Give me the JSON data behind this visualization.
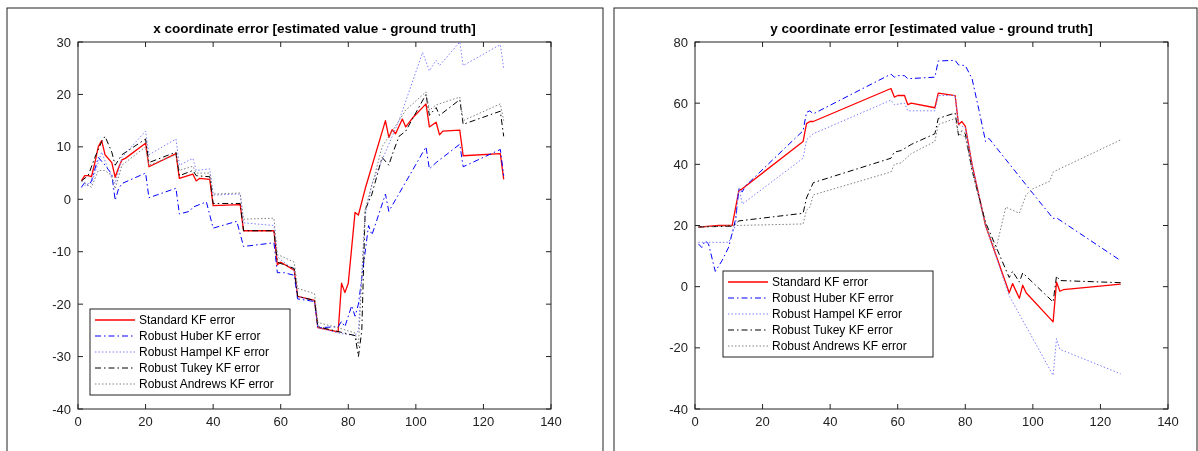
{
  "chart_data": [
    {
      "type": "line",
      "title": "x coordinate error [estimated value - ground truth]",
      "xlim": [
        0,
        140
      ],
      "xticks": [
        0,
        20,
        40,
        60,
        80,
        100,
        120,
        140
      ],
      "ylim": [
        -40,
        30
      ],
      "yticks": [
        -40,
        -30,
        -20,
        -10,
        0,
        10,
        20,
        30
      ],
      "grid": false,
      "legend": "bottom left",
      "marker": "none",
      "series": [
        {
          "name": "Standard KF error",
          "color": "#ff0000",
          "line_style": "solid",
          "x": [
            1,
            2,
            3,
            4,
            5,
            6,
            7,
            8,
            10,
            11,
            12,
            13,
            14,
            20,
            21,
            29,
            30,
            34,
            35,
            36,
            39,
            40,
            48,
            49,
            58,
            59,
            60,
            64,
            65,
            70,
            71,
            77,
            78,
            79,
            80,
            82,
            83,
            85,
            91,
            92,
            93,
            94,
            96,
            97,
            99,
            103,
            104,
            106,
            107,
            108,
            113,
            114,
            125,
            126
          ],
          "values": [
            3.5,
            4.5,
            4.5,
            4.3,
            7,
            10,
            11.2,
            8.5,
            7,
            4.2,
            6,
            7.5,
            7.8,
            10.7,
            6.2,
            8.7,
            4,
            4.8,
            3.5,
            4,
            3.8,
            -1.2,
            -1,
            -6,
            -6,
            -12.5,
            -12,
            -13.5,
            -18.5,
            -19.3,
            -24.5,
            -25.3,
            -16,
            -17.8,
            -16,
            -2.5,
            -3,
            2,
            15,
            11.8,
            13.3,
            12.5,
            15.3,
            13.8,
            15.5,
            18.2,
            13.8,
            14.7,
            12.3,
            13,
            13.2,
            8.3,
            8.7,
            3.8
          ]
        },
        {
          "name": "Robust Huber KF error",
          "color": "#0000ff",
          "line_style": "dashed",
          "x": [
            1,
            2,
            3,
            4,
            6,
            8,
            10,
            11,
            12,
            13,
            20,
            21,
            29,
            30,
            33,
            34,
            38,
            40,
            47,
            49,
            58,
            59,
            61,
            64,
            65,
            70,
            71,
            77,
            78,
            79,
            81,
            82,
            83,
            86,
            87,
            91,
            92,
            103,
            104,
            106,
            113,
            114,
            125,
            126
          ],
          "values": [
            2.3,
            3.2,
            2.6,
            3.5,
            8,
            6.5,
            4.8,
            -0.2,
            2,
            3,
            5,
            0.3,
            2.1,
            -2.8,
            -2.3,
            -1.5,
            -0.5,
            -5.5,
            -4.2,
            -9,
            -8.3,
            -14,
            -14,
            -14.5,
            -19,
            -19.5,
            -24.5,
            -24.3,
            -23.3,
            -24.3,
            -20.3,
            -22.3,
            -20,
            -5,
            -6.8,
            1,
            -2.3,
            10,
            5.8,
            7,
            10.5,
            6.2,
            9.5,
            4.5
          ]
        },
        {
          "name": "Robust Hampel KF error",
          "color": "#8080ff",
          "line_style": "dotted",
          "x": [
            1,
            3,
            4,
            5,
            7,
            10,
            11,
            13,
            20,
            21,
            29,
            30,
            34,
            35,
            39,
            40,
            48,
            49,
            58,
            59,
            64,
            65,
            70,
            71,
            77,
            82,
            83,
            85,
            87,
            95,
            102,
            104,
            106,
            107,
            113,
            114,
            125,
            126
          ],
          "values": [
            2.3,
            3,
            3,
            5,
            9,
            4,
            3,
            8,
            13,
            8.5,
            11.5,
            6.5,
            7.8,
            5.5,
            5.8,
            0.8,
            1,
            -4.5,
            -5,
            -11,
            -13.5,
            -18.5,
            -19.5,
            -24.5,
            -25.5,
            -26,
            -25,
            -3,
            3,
            15,
            28,
            24.5,
            26.5,
            25.5,
            30,
            25.5,
            29.5,
            25
          ]
        },
        {
          "name": "Robust Tukey KF error",
          "color": "#000000",
          "line_style": "dashed",
          "x": [
            1,
            3,
            5,
            7,
            8,
            10,
            11,
            13,
            20,
            21,
            29,
            30,
            34,
            35,
            39,
            40,
            48,
            49,
            58,
            59,
            64,
            65,
            70,
            71,
            82,
            83,
            84,
            85,
            87,
            90,
            92,
            93,
            95,
            97,
            103,
            104,
            106,
            107,
            113,
            114,
            125,
            126
          ],
          "values": [
            3.5,
            4.5,
            8,
            11,
            12,
            9,
            6.5,
            8.5,
            11.5,
            7,
            9,
            4.5,
            5.5,
            4.5,
            4.3,
            -0.8,
            -0.8,
            -6,
            -6,
            -12,
            -13.2,
            -18.5,
            -19.3,
            -24.3,
            -26,
            -30,
            -25,
            -2,
            1,
            8,
            6.5,
            8.5,
            12,
            13,
            20,
            16,
            17.5,
            16,
            19,
            14.3,
            16.8,
            12
          ]
        },
        {
          "name": "Robust Andrews KF error",
          "color": "#808080",
          "line_style": "dotted",
          "x": [
            1,
            4,
            6,
            8,
            10,
            11,
            13,
            20,
            21,
            29,
            30,
            34,
            35,
            39,
            40,
            48,
            49,
            58,
            59,
            64,
            65,
            70,
            71,
            77,
            82,
            83,
            85,
            88,
            90,
            95,
            97,
            103,
            104,
            106,
            113,
            114,
            125,
            126
          ],
          "values": [
            3.5,
            2.3,
            5.5,
            5.5,
            4.5,
            2,
            6.5,
            10,
            6.5,
            8.5,
            5.5,
            6.3,
            5,
            5,
            1,
            1.2,
            -3.8,
            -3.6,
            -10.5,
            -12,
            -17,
            -18,
            -23.5,
            -24.5,
            -25.5,
            -28,
            -2,
            5,
            10,
            15,
            17,
            20.5,
            17,
            18,
            19.5,
            15,
            18.2,
            15
          ]
        }
      ]
    },
    {
      "type": "line",
      "title": "y coordinate error [estimated value - ground truth]",
      "xlim": [
        0,
        140
      ],
      "xticks": [
        0,
        20,
        40,
        60,
        80,
        100,
        120,
        140
      ],
      "ylim": [
        -40,
        80
      ],
      "yticks": [
        -40,
        -20,
        0,
        20,
        40,
        60,
        80
      ],
      "grid": false,
      "legend": "bottom left",
      "marker": "none",
      "series": [
        {
          "name": "Standard KF error",
          "color": "#ff0000",
          "line_style": "solid",
          "x": [
            1,
            7,
            11,
            13,
            14,
            32,
            33,
            34,
            35,
            58,
            59,
            60,
            62,
            63,
            64,
            71,
            72,
            77,
            78,
            79,
            80,
            82,
            86,
            93,
            94,
            96,
            97,
            98,
            106,
            107,
            108,
            109,
            126
          ],
          "values": [
            19.5,
            20,
            20,
            31.5,
            32,
            47.5,
            53.3,
            54,
            54,
            64.8,
            62,
            62.5,
            62.5,
            59.5,
            60,
            58.5,
            63.3,
            62.5,
            53,
            54,
            52.5,
            40,
            20,
            -2,
            1,
            -3.8,
            0.5,
            -2,
            -11.5,
            1.5,
            -1.5,
            -1,
            0.8
          ]
        },
        {
          "name": "Robust Huber KF error",
          "color": "#0000ff",
          "line_style": "dashed",
          "x": [
            1,
            2,
            3,
            4,
            6,
            8,
            10,
            12,
            13,
            14,
            15,
            32,
            33,
            34,
            35,
            58,
            59,
            60,
            62,
            63,
            71,
            72,
            77,
            78,
            80,
            82,
            84,
            86,
            87,
            100,
            106,
            107,
            126
          ],
          "values": [
            14,
            12.8,
            15,
            14,
            5,
            8.5,
            13,
            22,
            32,
            31,
            33,
            51,
            57,
            57.5,
            56.5,
            69.5,
            68.5,
            69,
            69,
            68,
            68.5,
            73.8,
            74,
            72.5,
            72.3,
            68,
            58,
            47.5,
            48.5,
            30.5,
            22.3,
            22.5,
            8.5
          ]
        },
        {
          "name": "Robust Hampel KF error",
          "color": "#8080ff",
          "line_style": "dotted",
          "x": [
            1,
            3,
            10,
            12,
            13,
            14,
            32,
            33,
            35,
            58,
            59,
            62,
            63,
            71,
            72,
            77,
            78,
            80,
            82,
            86,
            93,
            106,
            107,
            108,
            126
          ],
          "values": [
            14.5,
            14.5,
            14.5,
            20,
            32.5,
            27,
            42,
            48,
            50,
            61,
            59.5,
            60,
            57.5,
            57.5,
            62.5,
            62.5,
            53,
            52,
            40,
            20,
            -3,
            -29,
            -17,
            -20.5,
            -28.5
          ]
        },
        {
          "name": "Robust Tukey KF error",
          "color": "#000000",
          "line_style": "dashed",
          "x": [
            1,
            11,
            13,
            32,
            33,
            35,
            58,
            59,
            61,
            64,
            71,
            72,
            77,
            78,
            79,
            80,
            82,
            86,
            93,
            94,
            96,
            97,
            106,
            107,
            108,
            126
          ],
          "values": [
            19.5,
            19.8,
            21.5,
            24,
            29,
            34,
            42,
            44,
            44.5,
            46.5,
            50,
            55,
            56.8,
            49.5,
            51,
            50,
            38,
            21,
            3,
            5,
            1.5,
            4.5,
            -5,
            3.5,
            2,
            1.3
          ]
        },
        {
          "name": "Robust Andrews KF error",
          "color": "#808080",
          "line_style": "dotted",
          "x": [
            1,
            11,
            12,
            32,
            33,
            34,
            35,
            58,
            59,
            61,
            64,
            71,
            72,
            77,
            78,
            80,
            82,
            86,
            89,
            92,
            95,
            96,
            98,
            100,
            105,
            106,
            126
          ],
          "values": [
            19.5,
            20,
            20,
            20.5,
            25,
            26,
            30,
            37.5,
            40,
            40.5,
            43.5,
            47.5,
            53,
            55,
            50,
            49,
            38,
            20,
            12,
            26,
            24.5,
            24,
            30,
            32,
            34.5,
            37.5,
            48
          ]
        }
      ]
    }
  ]
}
